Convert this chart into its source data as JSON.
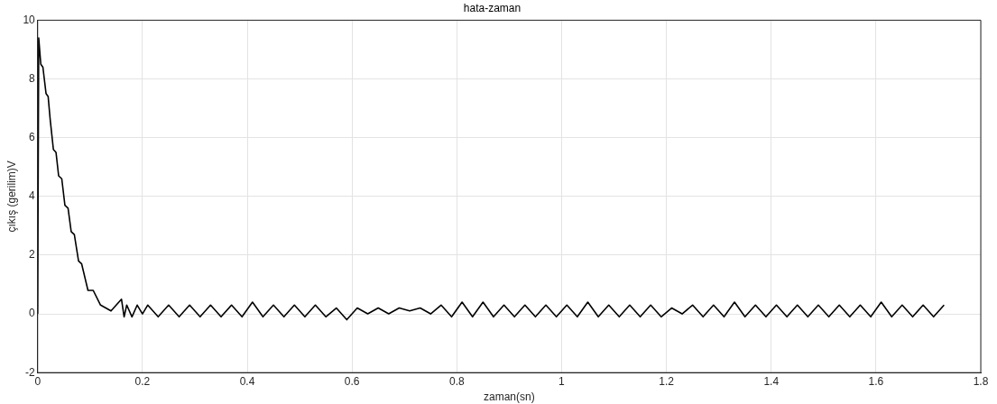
{
  "chart_data": {
    "type": "line",
    "title": "hata-zaman",
    "xlabel": "zaman(sn)",
    "ylabel": "çıkış (gerilim)V",
    "xlim": [
      0,
      1.8
    ],
    "xticks": [
      0,
      0.2,
      0.4,
      0.6,
      0.8,
      1,
      1.2,
      1.4,
      1.6,
      1.8
    ],
    "ylim": [
      -2,
      10
    ],
    "yticks": [
      -2,
      0,
      2,
      4,
      6,
      8,
      10
    ],
    "grid": true,
    "legend": false,
    "marker": "none",
    "line_style": "solid",
    "series": [
      {
        "color": "#000000",
        "x": [
          0,
          0.002,
          0.006,
          0.01,
          0.016,
          0.02,
          0.024,
          0.03,
          0.035,
          0.04,
          0.046,
          0.052,
          0.058,
          0.064,
          0.07,
          0.078,
          0.084,
          0.096,
          0.106,
          0.12,
          0.13,
          0.14,
          0.15,
          0.16,
          0.165,
          0.17,
          0.18,
          0.19,
          0.2,
          0.21,
          0.23,
          0.25,
          0.27,
          0.29,
          0.31,
          0.33,
          0.35,
          0.37,
          0.39,
          0.41,
          0.43,
          0.45,
          0.47,
          0.49,
          0.51,
          0.53,
          0.55,
          0.57,
          0.59,
          0.61,
          0.63,
          0.65,
          0.67,
          0.69,
          0.71,
          0.73,
          0.75,
          0.77,
          0.79,
          0.81,
          0.83,
          0.85,
          0.87,
          0.89,
          0.91,
          0.93,
          0.95,
          0.97,
          0.99,
          1.01,
          1.03,
          1.05,
          1.07,
          1.09,
          1.11,
          1.13,
          1.15,
          1.17,
          1.19,
          1.21,
          1.23,
          1.25,
          1.27,
          1.29,
          1.31,
          1.33,
          1.35,
          1.37,
          1.39,
          1.41,
          1.43,
          1.45,
          1.47,
          1.49,
          1.51,
          1.53,
          1.55,
          1.57,
          1.59,
          1.61,
          1.63,
          1.65,
          1.67,
          1.69,
          1.71,
          1.73
        ],
        "values": [
          0,
          9.4,
          8.5,
          8.4,
          7.5,
          7.4,
          6.6,
          5.6,
          5.5,
          4.7,
          4.6,
          3.7,
          3.6,
          2.8,
          2.7,
          1.8,
          1.7,
          0.8,
          0.8,
          0.3,
          0.2,
          0.1,
          0.3,
          0.5,
          -0.1,
          0.3,
          -0.1,
          0.3,
          0,
          0.3,
          -0.1,
          0.3,
          -0.1,
          0.3,
          -0.1,
          0.3,
          -0.1,
          0.3,
          -0.1,
          0.4,
          -0.1,
          0.3,
          -0.1,
          0.3,
          -0.1,
          0.3,
          -0.1,
          0.2,
          -0.2,
          0.2,
          0,
          0.2,
          0,
          0.2,
          0.1,
          0.2,
          0,
          0.3,
          -0.1,
          0.4,
          -0.1,
          0.4,
          -0.1,
          0.3,
          -0.1,
          0.3,
          -0.1,
          0.3,
          -0.1,
          0.3,
          -0.1,
          0.4,
          -0.1,
          0.3,
          -0.1,
          0.3,
          -0.1,
          0.3,
          -0.1,
          0.2,
          0,
          0.3,
          -0.1,
          0.3,
          -0.1,
          0.4,
          -0.1,
          0.3,
          -0.1,
          0.3,
          -0.1,
          0.3,
          -0.1,
          0.3,
          -0.1,
          0.3,
          -0.1,
          0.3,
          -0.1,
          0.4,
          -0.1,
          0.3,
          -0.1,
          0.3,
          -0.1,
          0.3
        ]
      }
    ]
  }
}
